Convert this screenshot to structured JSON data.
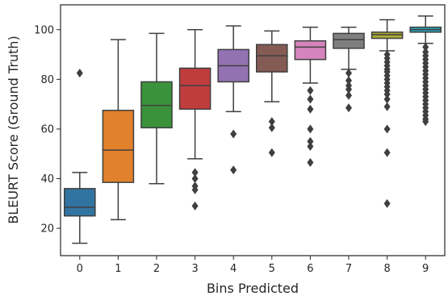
{
  "chart_data": {
    "type": "box",
    "title": "",
    "xlabel": "Bins Predicted",
    "ylabel": "BLEURT Score (Ground Truth)",
    "ylim": [
      9,
      110
    ],
    "yticks": [
      20,
      40,
      60,
      80,
      100
    ],
    "grid": false,
    "categories": [
      "0",
      "1",
      "2",
      "3",
      "4",
      "5",
      "6",
      "7",
      "8",
      "9"
    ],
    "boxes": [
      {
        "category": "0",
        "whisker_low": 14,
        "q1": 25,
        "median": 28.5,
        "q3": 36,
        "whisker_high": 42.5,
        "outliers": [
          82.5
        ],
        "color": "#3274a1"
      },
      {
        "category": "1",
        "whisker_low": 23.5,
        "q1": 38.5,
        "median": 51.5,
        "q3": 67.5,
        "whisker_high": 96,
        "outliers": [],
        "color": "#e1812c"
      },
      {
        "category": "2",
        "whisker_low": 38,
        "q1": 60.5,
        "median": 69.5,
        "q3": 79,
        "whisker_high": 98.5,
        "outliers": [],
        "color": "#3a923a"
      },
      {
        "category": "3",
        "whisker_low": 48,
        "q1": 68,
        "median": 77.5,
        "q3": 84.5,
        "whisker_high": 100,
        "outliers": [
          42.5,
          40,
          37,
          35.5,
          29
        ],
        "color": "#c03d3e"
      },
      {
        "category": "4",
        "whisker_low": 67,
        "q1": 79,
        "median": 85.5,
        "q3": 92,
        "whisker_high": 101.5,
        "outliers": [
          58,
          43.5
        ],
        "color": "#9372b2"
      },
      {
        "category": "5",
        "whisker_low": 71,
        "q1": 83,
        "median": 89.5,
        "q3": 94,
        "whisker_high": 99.5,
        "outliers": [
          63,
          60.5,
          50.5
        ],
        "color": "#845b53"
      },
      {
        "category": "6",
        "whisker_low": 78.5,
        "q1": 88,
        "median": 93,
        "q3": 95.5,
        "whisker_high": 101,
        "outliers": [
          75.5,
          72,
          68,
          60,
          55,
          53,
          46.5
        ],
        "color": "#d684bd"
      },
      {
        "category": "7",
        "whisker_low": 84,
        "q1": 92.5,
        "median": 96,
        "q3": 98.5,
        "whisker_high": 101,
        "outliers": [
          82.5,
          79.5,
          77.5,
          76,
          73.5,
          68.5
        ],
        "color": "#7f7f7f"
      },
      {
        "category": "8",
        "whisker_low": 91.5,
        "q1": 96.5,
        "median": 98,
        "q3": 99,
        "whisker_high": 104,
        "outliers": [
          90,
          88.5,
          87,
          85.5,
          84,
          83,
          81.5,
          80,
          78.5,
          77,
          75.5,
          74,
          72,
          69,
          60,
          50.5,
          30
        ],
        "color": "#a9aa35"
      },
      {
        "category": "9",
        "whisker_low": 94.5,
        "q1": 99,
        "median": 100,
        "q3": 101,
        "whisker_high": 105.5,
        "outliers": [
          93,
          91,
          89.5,
          88,
          86.5,
          85,
          83.5,
          82,
          80.5,
          79,
          77.5,
          76,
          74.5,
          73,
          71.5,
          70,
          68.5,
          67,
          65.5,
          64,
          63
        ],
        "color": "#2e9fb7"
      }
    ]
  }
}
